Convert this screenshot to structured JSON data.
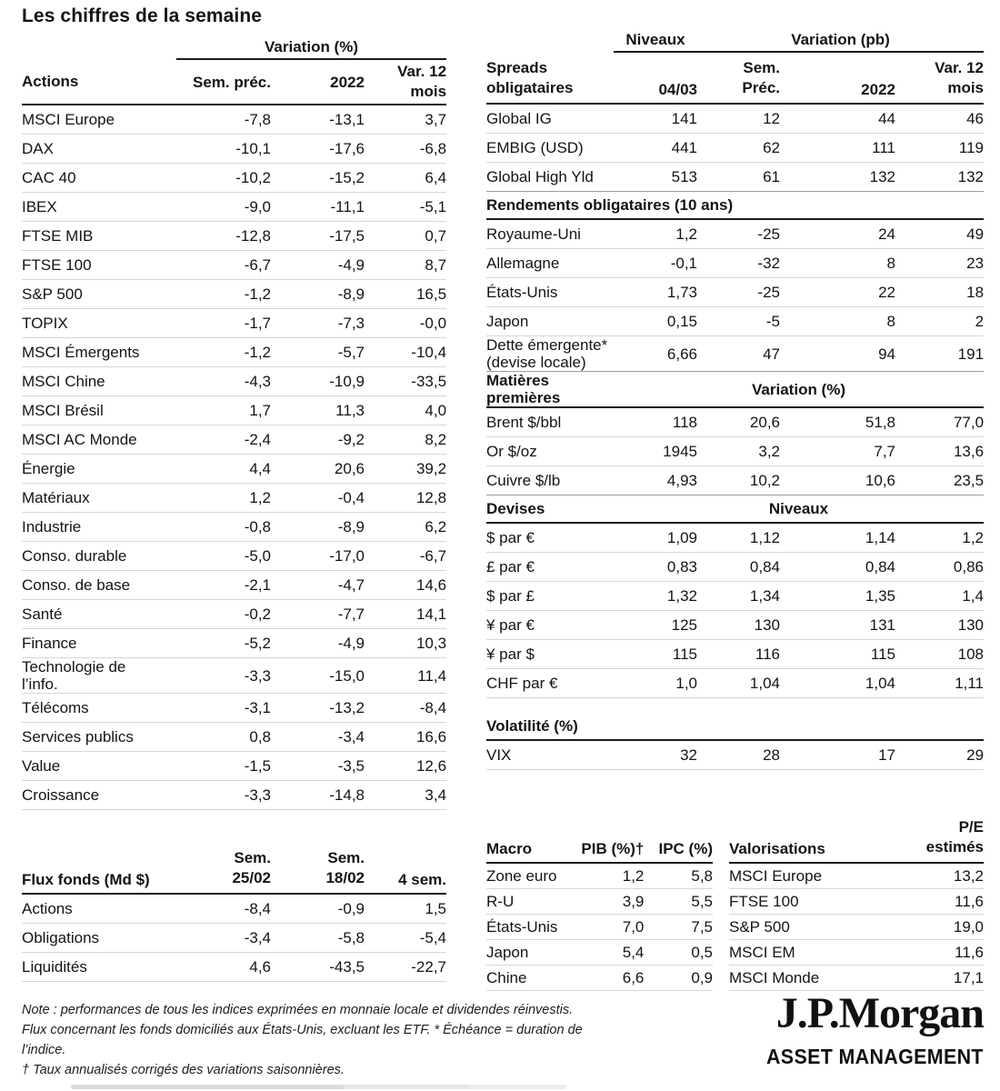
{
  "title": "Les chiffres de la semaine",
  "colors": {
    "text": "#141414",
    "rule_light": "#d6d6d6",
    "rule_mid": "#9c9c9c",
    "rule_dark": "#1a1a1a"
  },
  "equities": {
    "group_label": "Variation (%)",
    "header": [
      "Actions",
      "Sem. préc.",
      "2022",
      "Var. 12\nmois"
    ],
    "rows": [
      [
        "MSCI Europe",
        "-7,8",
        "-13,1",
        "3,7"
      ],
      [
        "DAX",
        "-10,1",
        "-17,6",
        "-6,8"
      ],
      [
        "CAC 40",
        "-10,2",
        "-15,2",
        "6,4"
      ],
      [
        "IBEX",
        "-9,0",
        "-11,1",
        "-5,1"
      ],
      [
        "FTSE MIB",
        "-12,8",
        "-17,5",
        "0,7"
      ],
      [
        "FTSE 100",
        "-6,7",
        "-4,9",
        "8,7"
      ],
      [
        "S&P 500",
        "-1,2",
        "-8,9",
        "16,5"
      ],
      [
        "TOPIX",
        "-1,7",
        "-7,3",
        "-0,0"
      ],
      [
        "MSCI Émergents",
        "-1,2",
        "-5,7",
        "-10,4"
      ],
      [
        "MSCI Chine",
        "-4,3",
        "-10,9",
        "-33,5"
      ],
      [
        "MSCI Brésil",
        "1,7",
        "11,3",
        "4,0"
      ],
      [
        "MSCI AC Monde",
        "-2,4",
        "-9,2",
        "8,2"
      ],
      [
        "Énergie",
        "4,4",
        "20,6",
        "39,2"
      ],
      [
        "Matériaux",
        "1,2",
        "-0,4",
        "12,8"
      ],
      [
        "Industrie",
        "-0,8",
        "-8,9",
        "6,2"
      ],
      [
        "Conso. durable",
        "-5,0",
        "-17,0",
        "-6,7"
      ],
      [
        "Conso. de base",
        "-2,1",
        "-4,7",
        "14,6"
      ],
      [
        "Santé",
        "-0,2",
        "-7,7",
        "14,1"
      ],
      [
        "Finance",
        "-5,2",
        "-4,9",
        "10,3"
      ],
      [
        "Technologie de\nl’info.",
        "-3,3",
        "-15,0",
        "11,4"
      ],
      [
        "Télécoms",
        "-3,1",
        "-13,2",
        "-8,4"
      ],
      [
        "Services publics",
        "0,8",
        "-3,4",
        "16,6"
      ],
      [
        "Value",
        "-1,5",
        "-3,5",
        "12,6"
      ],
      [
        "Croissance",
        "-3,3",
        "-14,8",
        "3,4"
      ]
    ]
  },
  "funds_flow": {
    "header": [
      "Flux fonds (Md $)",
      "Sem.\n25/02",
      "Sem.\n18/02",
      "4 sem."
    ],
    "rows": [
      [
        "Actions",
        "-8,4",
        "-0,9",
        "1,5"
      ],
      [
        "Obligations",
        "-3,4",
        "-5,8",
        "-5,4"
      ],
      [
        "Liquidités",
        "4,6",
        "-43,5",
        "-22,7"
      ]
    ]
  },
  "fixed_income": {
    "group_labels": {
      "levels": "Niveaux",
      "variation": "Variation (pb)"
    },
    "header": [
      "Spreads\nobligataires",
      "04/03",
      "Sem.\nPréc.",
      "2022",
      "Var. 12\nmois"
    ],
    "spreads_rows": [
      [
        "Global IG",
        "141",
        "12",
        "44",
        "46"
      ],
      [
        "EMBIG (USD)",
        "441",
        "62",
        "111",
        "119"
      ],
      [
        "Global High Yld",
        "513",
        "61",
        "132",
        "132"
      ]
    ],
    "sections": [
      {
        "title": "Rendements obligataires (10 ans)",
        "center_label": "",
        "rows": [
          [
            "Royaume-Uni",
            "1,2",
            "-25",
            "24",
            "49"
          ],
          [
            "Allemagne",
            "-0,1",
            "-32",
            "8",
            "23"
          ],
          [
            "États-Unis",
            "1,73",
            "-25",
            "22",
            "18"
          ],
          [
            "Japon",
            "0,15",
            "-5",
            "8",
            "2"
          ],
          [
            "Dette émergente*\n(devise locale)",
            "6,66",
            "47",
            "94",
            "191"
          ]
        ]
      },
      {
        "title": "Matières premières",
        "center_label": "Variation (%)",
        "rows": [
          [
            "Brent $/bbl",
            "118",
            "20,6",
            "51,8",
            "77,0"
          ],
          [
            "Or $/oz",
            "1945",
            "3,2",
            "7,7",
            "13,6"
          ],
          [
            "Cuivre $/lb",
            "4,93",
            "10,2",
            "10,6",
            "23,5"
          ]
        ]
      },
      {
        "title": "Devises",
        "center_label": "Niveaux",
        "rows": [
          [
            "$ par €",
            "1,09",
            "1,12",
            "1,14",
            "1,2"
          ],
          [
            "£ par €",
            "0,83",
            "0,84",
            "0,84",
            "0,86"
          ],
          [
            "$ par £",
            "1,32",
            "1,34",
            "1,35",
            "1,4"
          ],
          [
            "¥ par €",
            "125",
            "130",
            "131",
            "130"
          ],
          [
            "¥ par $",
            "115",
            "116",
            "115",
            "108"
          ],
          [
            "CHF par €",
            "1,0",
            "1,04",
            "1,04",
            "1,11"
          ]
        ]
      }
    ]
  },
  "volatility": {
    "title": "Volatilité (%)",
    "rows": [
      [
        "VIX",
        "32",
        "28",
        "17",
        "29"
      ]
    ]
  },
  "macro": {
    "header": [
      "Macro",
      "PIB (%)†",
      "IPC (%)"
    ],
    "rows": [
      [
        "Zone euro",
        "1,2",
        "5,8"
      ],
      [
        "R-U",
        "3,9",
        "5,5"
      ],
      [
        "États-Unis",
        "7,0",
        "7,5"
      ],
      [
        "Japon",
        "5,4",
        "0,5"
      ],
      [
        "Chine",
        "6,6",
        "0,9"
      ]
    ]
  },
  "valuations": {
    "header": [
      "Valorisations",
      "P/E\nestimés"
    ],
    "rows": [
      [
        "MSCI Europe",
        "13,2"
      ],
      [
        "FTSE 100",
        "11,6"
      ],
      [
        "S&P 500",
        "19,0"
      ],
      [
        "MSCI EM",
        "11,6"
      ],
      [
        "MSCI Monde",
        "17,1"
      ]
    ]
  },
  "notes": [
    "Note : performances de tous les indices exprimées en monnaie locale et dividendes réinvestis.",
    "Flux concernant les fonds domiciliés aux États-Unis, excluant les ETF. * Échéance = duration de",
    "l’indice.",
    "† Taux annualisés corrigés des variations saisonnières."
  ],
  "logo": {
    "brand": "J.P.Morgan",
    "division": "ASSET MANAGEMENT"
  }
}
